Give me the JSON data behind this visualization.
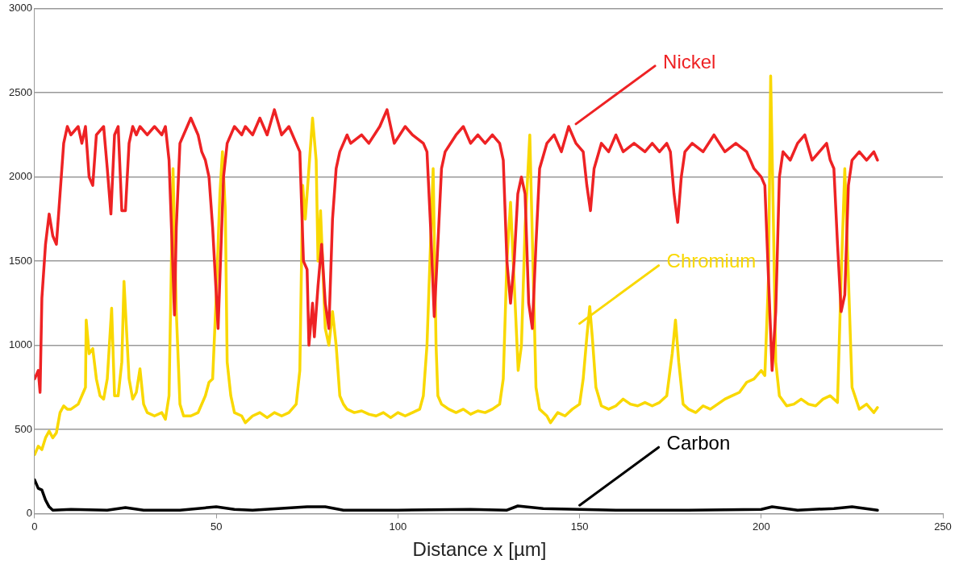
{
  "chart_data": {
    "type": "line",
    "xlabel": "Distance x [µm]",
    "xlim": [
      0,
      250
    ],
    "xticks": [
      0,
      50,
      100,
      150,
      200,
      250
    ],
    "ylim": [
      0,
      3000
    ],
    "yticks": [
      0,
      500,
      1000,
      1500,
      2000,
      2500,
      3000
    ],
    "grid": "y",
    "legend": false,
    "marker": "none",
    "line_style": "solid",
    "series": [
      {
        "name": "Nickel",
        "color": "#ee2224",
        "x": [
          0,
          1,
          1.5,
          2,
          3,
          4,
          5,
          6,
          7,
          8,
          9,
          10,
          12,
          13,
          14,
          15,
          16,
          17,
          19,
          20,
          21,
          22,
          23,
          24,
          25,
          26,
          27,
          28,
          29,
          31,
          33,
          35,
          36,
          37,
          38,
          38.5,
          39,
          40,
          42,
          43,
          45,
          46,
          47,
          48,
          49,
          50,
          50.5,
          51,
          52,
          53,
          55,
          57,
          58,
          60,
          62,
          64,
          66,
          68,
          70,
          72,
          73,
          74,
          75,
          75.5,
          76.5,
          77,
          78,
          79,
          80,
          81,
          82,
          83,
          84,
          86,
          87,
          90,
          92,
          95,
          97,
          99,
          102,
          104,
          107,
          108,
          109,
          110,
          111,
          112,
          113,
          116,
          118,
          120,
          122,
          124,
          126,
          128,
          129,
          130,
          131,
          132,
          133,
          134,
          135,
          136,
          137,
          138,
          139,
          141,
          143,
          145,
          147,
          149,
          151,
          152,
          153,
          154,
          156,
          158,
          160,
          162,
          165,
          168,
          170,
          172,
          174,
          175,
          176,
          177,
          178,
          179,
          181,
          184,
          187,
          190,
          193,
          196,
          198,
          200,
          201,
          202,
          203,
          204,
          205,
          206,
          208,
          210,
          212,
          214,
          216,
          218,
          219,
          220,
          221,
          222,
          223,
          224,
          225,
          227,
          229,
          231,
          232
        ],
        "values": [
          800,
          850,
          720,
          1280,
          1600,
          1780,
          1650,
          1600,
          1900,
          2200,
          2300,
          2250,
          2300,
          2200,
          2300,
          2000,
          1950,
          2250,
          2300,
          2050,
          1780,
          2250,
          2300,
          1800,
          1800,
          2200,
          2300,
          2250,
          2300,
          2250,
          2300,
          2250,
          2300,
          2100,
          1500,
          1180,
          1700,
          2200,
          2300,
          2350,
          2250,
          2150,
          2100,
          2000,
          1700,
          1300,
          1100,
          1400,
          2000,
          2200,
          2300,
          2250,
          2300,
          2250,
          2350,
          2250,
          2400,
          2250,
          2300,
          2200,
          2150,
          1500,
          1450,
          1000,
          1250,
          1050,
          1350,
          1600,
          1250,
          1100,
          1750,
          2050,
          2150,
          2250,
          2200,
          2250,
          2200,
          2300,
          2400,
          2200,
          2300,
          2250,
          2200,
          2150,
          1700,
          1170,
          1600,
          2050,
          2150,
          2250,
          2300,
          2200,
          2250,
          2200,
          2250,
          2200,
          2100,
          1500,
          1250,
          1500,
          1900,
          2000,
          1900,
          1250,
          1100,
          1600,
          2050,
          2200,
          2250,
          2150,
          2300,
          2200,
          2150,
          1950,
          1800,
          2050,
          2200,
          2150,
          2250,
          2150,
          2200,
          2150,
          2200,
          2150,
          2200,
          2150,
          1900,
          1730,
          2000,
          2150,
          2200,
          2150,
          2250,
          2150,
          2200,
          2150,
          2050,
          2000,
          1950,
          1400,
          850,
          1200,
          2000,
          2150,
          2100,
          2200,
          2250,
          2100,
          2150,
          2200,
          2100,
          2050,
          1600,
          1200,
          1300,
          1950,
          2100,
          2150,
          2100,
          2150,
          2100
        ]
      },
      {
        "name": "Chromium",
        "color": "#f9d800",
        "x": [
          0,
          1,
          2,
          3,
          4,
          5,
          6,
          7,
          8,
          9,
          10,
          12,
          13,
          14,
          14.2,
          15,
          16,
          17,
          18,
          19,
          20,
          21.2,
          22,
          23,
          24,
          24.6,
          26,
          27,
          28,
          29,
          30,
          31,
          33,
          35,
          36,
          37,
          38.1,
          39,
          40,
          41,
          43,
          45,
          47,
          48,
          49,
          50,
          51,
          51.7,
          52.5,
          53,
          54,
          55,
          57,
          58,
          60,
          62,
          64,
          66,
          68,
          70,
          72,
          73,
          73.8,
          74.5,
          76.5,
          77.5,
          78,
          78.7,
          80,
          81,
          82,
          83,
          84,
          85,
          86,
          88,
          90,
          92,
          94,
          96,
          98,
          100,
          102,
          104,
          106,
          107,
          108,
          109.7,
          110.5,
          111,
          112,
          114,
          116,
          118,
          120,
          122,
          124,
          126,
          128,
          129,
          130,
          131,
          133.1,
          134,
          135,
          136.3,
          137.5,
          138,
          139,
          141,
          142,
          144,
          146,
          148,
          150,
          151,
          152,
          152.8,
          153.5,
          154.5,
          156,
          158,
          160,
          162,
          164,
          166,
          168,
          170,
          172,
          174,
          175.5,
          176.4,
          177.3,
          178.5,
          180,
          182,
          184,
          186,
          188,
          190,
          192,
          194,
          196,
          198,
          200,
          201,
          202,
          202.6,
          203.3,
          204,
          205,
          207,
          209,
          211,
          213,
          215,
          217,
          219,
          221,
          222,
          223,
          224,
          225,
          227,
          229,
          231,
          232
        ],
        "values": [
          350,
          400,
          380,
          450,
          490,
          450,
          480,
          600,
          640,
          620,
          620,
          650,
          700,
          750,
          1150,
          950,
          980,
          800,
          700,
          680,
          800,
          1220,
          700,
          700,
          900,
          1380,
          800,
          680,
          720,
          860,
          650,
          600,
          580,
          600,
          560,
          700,
          2050,
          1200,
          650,
          580,
          580,
          600,
          700,
          780,
          800,
          1300,
          1900,
          2150,
          1800,
          900,
          700,
          600,
          580,
          540,
          580,
          600,
          570,
          600,
          580,
          600,
          650,
          850,
          1950,
          1750,
          2350,
          2100,
          1500,
          1800,
          1100,
          1000,
          1200,
          1000,
          700,
          650,
          620,
          600,
          610,
          590,
          580,
          600,
          570,
          600,
          580,
          600,
          620,
          700,
          1000,
          2050,
          1000,
          700,
          650,
          620,
          600,
          620,
          590,
          610,
          600,
          620,
          650,
          800,
          1500,
          1850,
          850,
          1000,
          1700,
          2250,
          1200,
          750,
          620,
          580,
          540,
          600,
          580,
          620,
          650,
          800,
          1050,
          1230,
          1050,
          750,
          640,
          620,
          640,
          680,
          650,
          640,
          660,
          640,
          660,
          700,
          950,
          1150,
          900,
          650,
          620,
          600,
          640,
          620,
          650,
          680,
          700,
          720,
          780,
          800,
          850,
          820,
          1400,
          2600,
          1800,
          900,
          700,
          640,
          650,
          680,
          650,
          640,
          680,
          700,
          660,
          1400,
          2050,
          1400,
          750,
          620,
          650,
          600,
          630
        ]
      },
      {
        "name": "Carbon",
        "color": "#000000",
        "x": [
          0,
          1,
          2,
          3,
          4,
          5,
          10,
          20,
          25,
          30,
          40,
          50,
          55,
          60,
          75,
          80,
          85,
          100,
          120,
          130,
          133,
          140,
          150,
          160,
          180,
          200,
          203,
          210,
          220,
          225,
          232
        ],
        "values": [
          200,
          150,
          140,
          80,
          40,
          20,
          25,
          20,
          35,
          20,
          20,
          40,
          25,
          20,
          40,
          40,
          20,
          20,
          25,
          20,
          45,
          30,
          25,
          20,
          20,
          25,
          40,
          20,
          30,
          40,
          20
        ]
      }
    ]
  }
}
